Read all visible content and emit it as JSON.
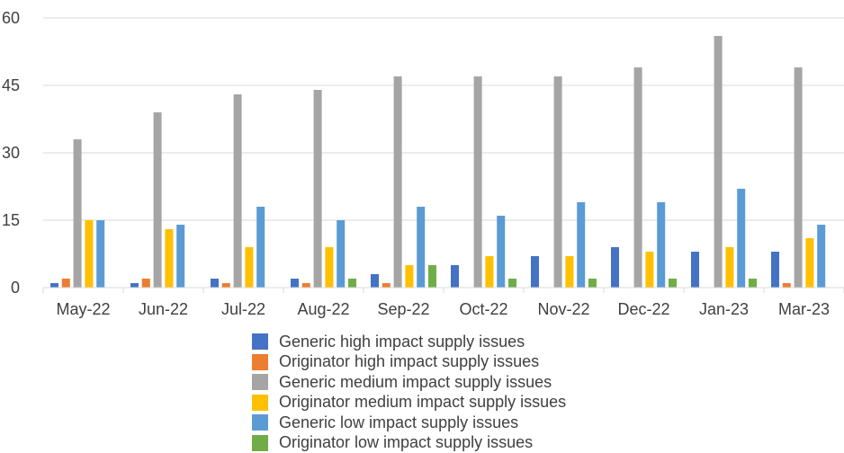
{
  "chart_data": {
    "type": "bar",
    "categories": [
      "May-22",
      "Jun-22",
      "Jul-22",
      "Aug-22",
      "Sep-22",
      "Oct-22",
      "Nov-22",
      "Dec-22",
      "Jan-23",
      "Mar-23"
    ],
    "series": [
      {
        "name": "Generic high impact supply issues",
        "color": "#4472C4",
        "values": [
          1,
          1,
          2,
          2,
          3,
          5,
          7,
          9,
          8,
          8
        ]
      },
      {
        "name": "Originator high impact supply issues",
        "color": "#ED7D31",
        "values": [
          2,
          2,
          1,
          1,
          1,
          0,
          0,
          0,
          0,
          1
        ]
      },
      {
        "name": "Generic medium impact supply issues",
        "color": "#A5A5A5",
        "values": [
          33,
          39,
          43,
          44,
          47,
          47,
          47,
          49,
          56,
          49
        ]
      },
      {
        "name": "Originator medium impact supply issues",
        "color": "#FFC000",
        "values": [
          15,
          13,
          9,
          9,
          5,
          7,
          7,
          8,
          9,
          11
        ]
      },
      {
        "name": "Generic low impact supply issues",
        "color": "#5B9BD5",
        "values": [
          15,
          14,
          18,
          15,
          18,
          16,
          19,
          19,
          22,
          14
        ]
      },
      {
        "name": "Originator low impact supply issues",
        "color": "#70AD47",
        "values": [
          0,
          0,
          0,
          2,
          5,
          2,
          2,
          2,
          2,
          0
        ]
      }
    ],
    "yticks": [
      "0",
      "15",
      "30",
      "45",
      "60"
    ],
    "ylim": [
      0,
      60
    ],
    "grid": true,
    "legend_position": "bottom"
  }
}
